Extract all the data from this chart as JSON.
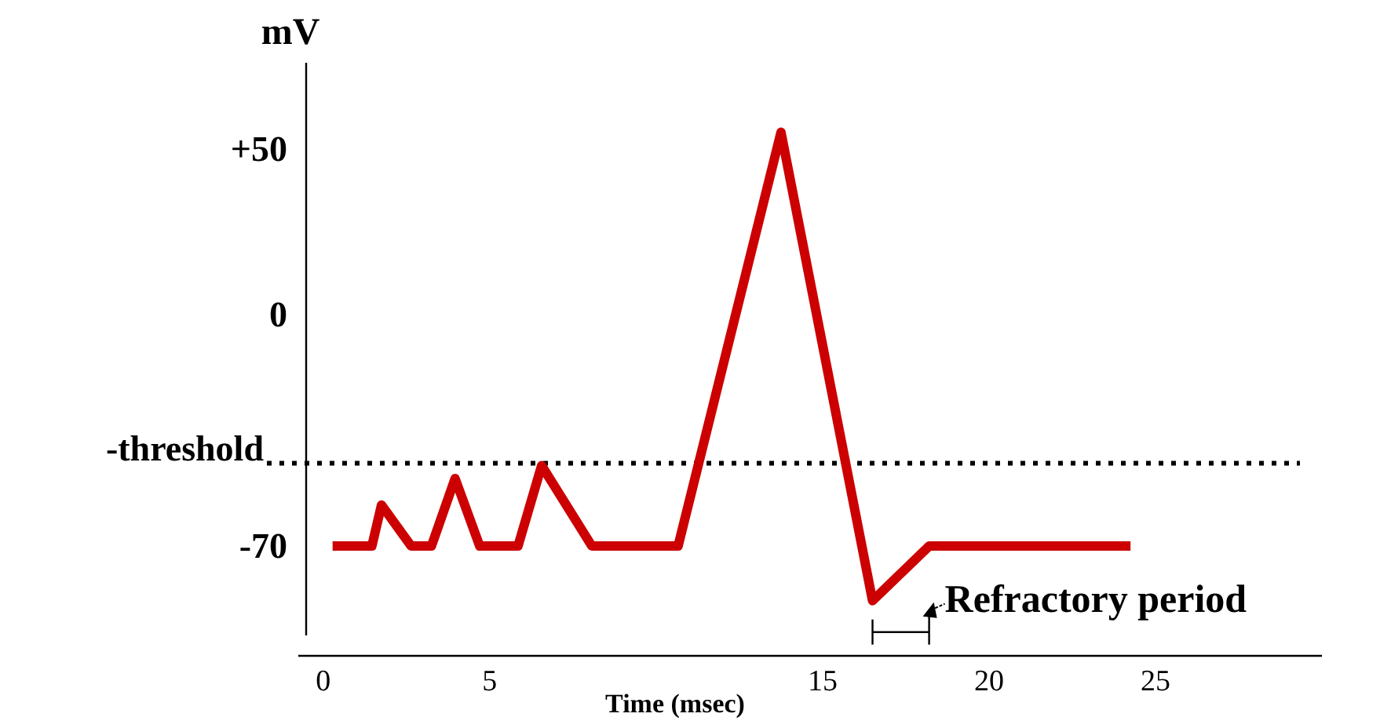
{
  "chart_data": {
    "type": "line",
    "xlabel": "Time (msec)",
    "ylabel": "mV",
    "xlim": [
      -0.75,
      30
    ],
    "xticks": [
      0,
      5,
      15,
      20,
      25
    ],
    "ylim": [
      -97,
      76
    ],
    "yticks": [
      {
        "value": 50,
        "label": "+50"
      },
      0,
      -70
    ],
    "series": [
      {
        "color": "#cc0000",
        "x": [
          0.28,
          1.46,
          1.75,
          2.64,
          3.25,
          3.96,
          4.7,
          5.85,
          6.56,
          8.07,
          10.66,
          13.75,
          16.5,
          18.2,
          24.25
        ],
        "values": [
          -70,
          -70,
          -57.6,
          -70,
          -70,
          -49.6,
          -70,
          -70,
          -45.7,
          -70,
          -70,
          55,
          -86.5,
          -70,
          -70
        ]
      }
    ],
    "ref_lines": [
      {
        "axis": "y",
        "value": -45,
        "label": "-threshold",
        "line_style": "dotted",
        "color": "#000000"
      }
    ],
    "annotations": [
      "Refractory period"
    ],
    "grid": false,
    "marker": "none",
    "line_style": "solid"
  }
}
